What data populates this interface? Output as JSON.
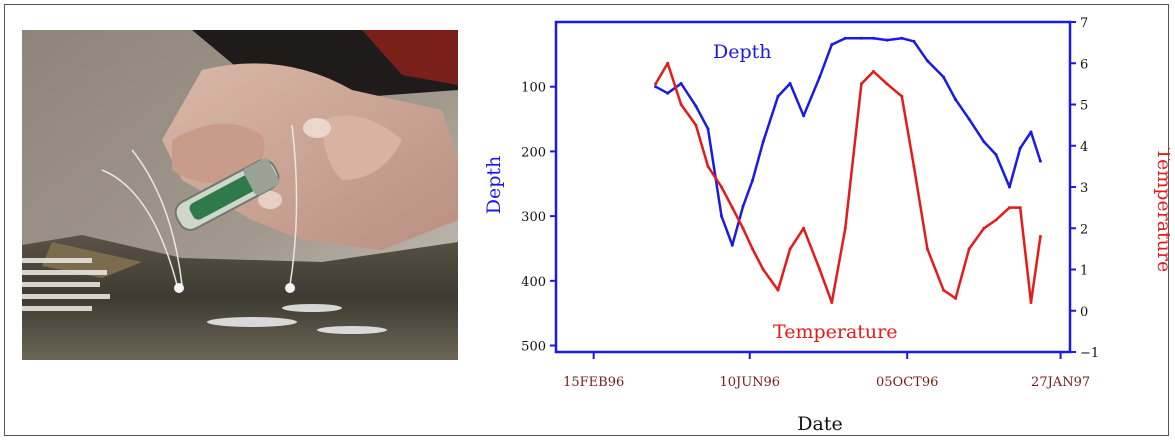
{
  "figure": {
    "photo_alt": "Hands attaching a data-storage tag with wires to the back of a fish"
  },
  "chart_data": {
    "type": "line",
    "xlabel": "Date",
    "ylabel_left": "Depth",
    "ylabel_right": "Temperature",
    "x_ticks": [
      "15FEB96",
      "10JUN96",
      "05OCT96",
      "27JAN97"
    ],
    "y_left_ticks": [
      "100",
      "200",
      "300",
      "400",
      "500"
    ],
    "y_right_ticks": [
      "7",
      "6",
      "5",
      "4",
      "3",
      "2",
      "1",
      "0",
      "−1"
    ],
    "y_left_range": [
      0,
      510
    ],
    "y_right_range": [
      -1,
      7
    ],
    "annotations": [
      "Depth",
      "Temperature"
    ],
    "series": [
      {
        "name": "Depth",
        "color": "#1a1ae6",
        "axis": "left",
        "x": [
          "1996-04-01",
          "1996-04-10",
          "1996-04-20",
          "1996-05-01",
          "1996-05-10",
          "1996-05-20",
          "1996-05-28",
          "1996-06-05",
          "1996-06-12",
          "1996-06-20",
          "1996-07-01",
          "1996-07-10",
          "1996-07-20",
          "1996-08-01",
          "1996-08-10",
          "1996-08-20",
          "1996-09-01",
          "1996-09-10",
          "1996-09-20",
          "1996-10-01",
          "1996-10-10",
          "1996-10-20",
          "1996-11-01",
          "1996-11-10",
          "1996-11-20",
          "1996-12-01",
          "1996-12-10",
          "1996-12-20",
          "1996-12-28",
          "1997-01-05",
          "1997-01-12"
        ],
        "y": [
          100,
          110,
          95,
          130,
          165,
          300,
          345,
          285,
          245,
          185,
          115,
          95,
          145,
          85,
          35,
          25,
          25,
          25,
          28,
          25,
          30,
          60,
          85,
          120,
          150,
          185,
          205,
          255,
          195,
          170,
          215
        ]
      },
      {
        "name": "Temperature",
        "color": "#e61a1a",
        "axis": "right",
        "x": [
          "1996-04-01",
          "1996-04-10",
          "1996-04-20",
          "1996-05-01",
          "1996-05-10",
          "1996-05-20",
          "1996-05-28",
          "1996-06-05",
          "1996-06-12",
          "1996-06-20",
          "1996-07-01",
          "1996-07-10",
          "1996-07-20",
          "1996-08-01",
          "1996-08-10",
          "1996-08-20",
          "1996-09-01",
          "1996-09-10",
          "1996-09-20",
          "1996-10-01",
          "1996-10-10",
          "1996-10-20",
          "1996-11-01",
          "1996-11-10",
          "1996-11-20",
          "1996-12-01",
          "1996-12-10",
          "1996-12-20",
          "1996-12-28",
          "1997-01-05",
          "1997-01-12"
        ],
        "y": [
          5.5,
          6.0,
          5.0,
          4.5,
          3.5,
          3.0,
          2.5,
          2.0,
          1.5,
          1.0,
          0.5,
          1.5,
          2.0,
          1.0,
          0.2,
          2.0,
          5.5,
          5.8,
          5.5,
          5.2,
          3.5,
          1.5,
          0.5,
          0.3,
          1.5,
          2.0,
          2.2,
          2.5,
          2.5,
          0.2,
          1.8
        ]
      }
    ]
  }
}
